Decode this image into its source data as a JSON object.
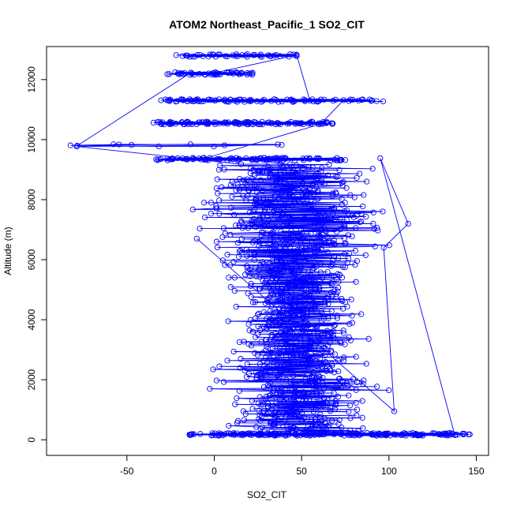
{
  "chart_data": {
    "type": "scatter",
    "title": "ATOM2 Northeast_Pacific_1 SO2_CIT",
    "xlabel": "SO2_CIT",
    "ylabel": "Altitude (m)",
    "xlim": [
      -96,
      157
    ],
    "ylim": [
      -520,
      13100
    ],
    "x_ticks": [
      -50,
      0,
      50,
      100,
      150
    ],
    "y_ticks": [
      0,
      2000,
      4000,
      6000,
      8000,
      10000,
      12000
    ],
    "grid": false,
    "legend": "none",
    "point_style": "open circle with connecting line",
    "series_color": "#0000ff",
    "notes_levels": [
      {
        "alt": 12800,
        "xmin": -22,
        "xmax": 50,
        "n": 45
      },
      {
        "alt": 12200,
        "xmin": -27,
        "xmax": 22,
        "n": 45
      },
      {
        "alt": 11300,
        "xmin": -35,
        "xmax": 97,
        "n": 90
      },
      {
        "alt": 10550,
        "xmin": -35,
        "xmax": 70,
        "n": 110
      },
      {
        "alt": 9800,
        "xmin": -90,
        "xmax": 55,
        "n": 12
      },
      {
        "alt": 9350,
        "xmin": -34,
        "xmax": 75,
        "n": 90
      },
      {
        "alt": 180,
        "xmin": -15,
        "xmax": 147,
        "n": 100
      }
    ],
    "bulk_profile": [
      {
        "alt": 9000,
        "xmin": -15,
        "xmax": 95
      },
      {
        "alt": 8000,
        "xmin": -20,
        "xmax": 98
      },
      {
        "alt": 7000,
        "xmin": -15,
        "xmax": 111
      },
      {
        "alt": 6000,
        "xmin": -10,
        "xmax": 100
      },
      {
        "alt": 5000,
        "xmin": 0,
        "xmax": 90
      },
      {
        "alt": 4000,
        "xmin": 5,
        "xmax": 90
      },
      {
        "alt": 3000,
        "xmin": 5,
        "xmax": 90
      },
      {
        "alt": 2000,
        "xmin": -5,
        "xmax": 100
      },
      {
        "alt": 1000,
        "xmin": 0,
        "xmax": 98
      }
    ],
    "spikes": [
      {
        "x": 95,
        "alt": 9380
      },
      {
        "x": 111,
        "alt": 7200
      },
      {
        "x": 97,
        "alt": 6400
      },
      {
        "x": 103,
        "alt": 950
      },
      {
        "x": -10,
        "alt": 6700
      }
    ]
  }
}
